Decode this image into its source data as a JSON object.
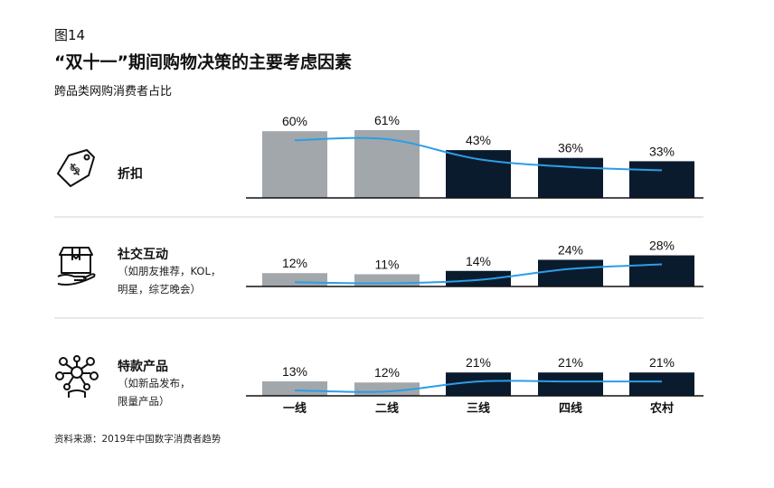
{
  "figure_label": "图14",
  "title": "“双十一”期间购物决策的主要考虑因素",
  "subtitle": "跨品类网购消费者占比",
  "source": "资料来源：2019年中国数字消费者趋势",
  "icons": [
    "price-tag-icon",
    "box-in-hand-icon",
    "molecule-network-icon"
  ],
  "colors": {
    "light_bar": "#a2a7ac",
    "dark_bar": "#0b1b2e",
    "trend_line": "#2b9ee6",
    "divider": "#cfd3d6"
  },
  "chart_data": {
    "type": "bar",
    "categories": [
      "一线",
      "二线",
      "三线",
      "四线",
      "农村"
    ],
    "panels": [
      {
        "label": "折扣",
        "sublabel": "",
        "values": [
          60,
          61,
          43,
          36,
          33
        ],
        "value_labels": [
          "60%",
          "61%",
          "43%",
          "36%",
          "33%"
        ]
      },
      {
        "label": "社交互动",
        "sublabel": "（如朋友推荐，KOL，\n明星，综艺晚会）",
        "values": [
          12,
          11,
          14,
          24,
          28
        ],
        "value_labels": [
          "12%",
          "11%",
          "14%",
          "24%",
          "28%"
        ]
      },
      {
        "label": "特款产品",
        "sublabel": "（如新品发布，\n限量产品）",
        "values": [
          13,
          12,
          21,
          21,
          21
        ],
        "value_labels": [
          "13%",
          "12%",
          "21%",
          "21%",
          "21%"
        ]
      }
    ],
    "bar_tone": [
      "light",
      "light",
      "dark",
      "dark",
      "dark"
    ],
    "trend_line": true
  }
}
